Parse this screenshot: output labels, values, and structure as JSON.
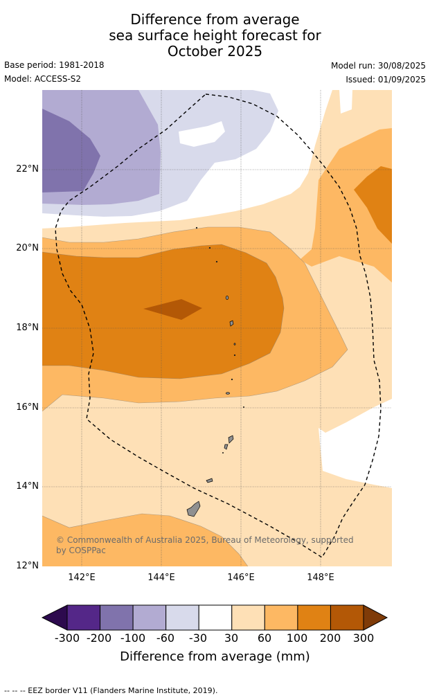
{
  "title": {
    "line1": "Difference from average",
    "line2": "sea surface height forecast for",
    "line3": "October 2025"
  },
  "meta": {
    "base_period": "Base period: 1981-2018",
    "model": "Model: ACCESS-S2",
    "model_run": "Model run: 30/08/2025",
    "issued": "Issued: 01/09/2025"
  },
  "map": {
    "lat_labels": [
      "22°N",
      "20°N",
      "18°N",
      "16°N",
      "14°N",
      "12°N"
    ],
    "lon_labels": [
      "142°E",
      "144°E",
      "146°E",
      "148°E"
    ],
    "credit": "© Commonwealth of Australia 2025, Bureau of Meteorology, supported by COSPPac"
  },
  "colorbar": {
    "ticks": [
      "-300",
      "-200",
      "-100",
      "-60",
      "-30",
      "30",
      "60",
      "100",
      "200",
      "300"
    ],
    "colors": [
      "#2d0a4e",
      "#542788",
      "#8073ac",
      "#b2abd2",
      "#d8daeb",
      "#ffffff",
      "#fee0b6",
      "#fdb863",
      "#e08214",
      "#b35806",
      "#7f3b08"
    ],
    "label": "Difference from average (mm)"
  },
  "footer": "--  --  -- EEZ border V11 (Flanders Marine Institute, 2019)."
}
